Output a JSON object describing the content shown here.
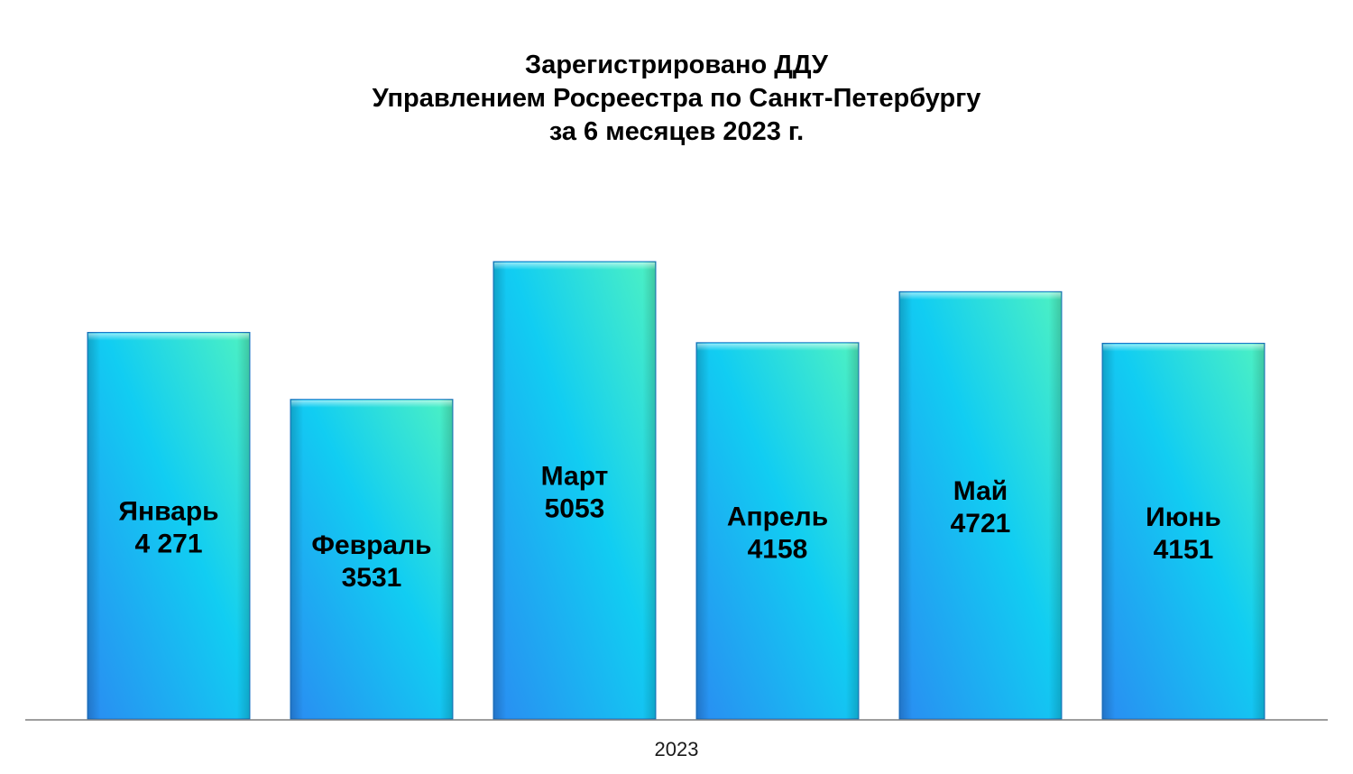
{
  "title_lines": [
    "Зарегистрировано ДДУ",
    "Управлением Росреестра по Санкт-Петербургу",
    "за 6 месяцев 2023 г."
  ],
  "colors": {
    "bar_gradient_dark": "#2a8cf2",
    "bar_gradient_mid": "#11cdf2",
    "bar_gradient_light": "#4ef2c2",
    "bar_edge": "#1b74c8",
    "axis": "#7f7f7f"
  },
  "chart_data": {
    "type": "bar",
    "title": "Зарегистрировано ДДУ Управлением Росреестра по Санкт-Петербургу за 6 месяцев 2023 г.",
    "xlabel": "2023",
    "ylabel": "",
    "grid": false,
    "legend": "none",
    "categories": [
      "Январь",
      "Февраль",
      "Март",
      "Апрель",
      "Май",
      "Июнь"
    ],
    "values": [
      4271,
      3531,
      5053,
      4158,
      4721,
      4151
    ],
    "value_labels": [
      "4 271",
      "3531",
      "5053",
      "4158",
      "4721",
      "4151"
    ],
    "ylim": [
      0,
      5053
    ]
  }
}
